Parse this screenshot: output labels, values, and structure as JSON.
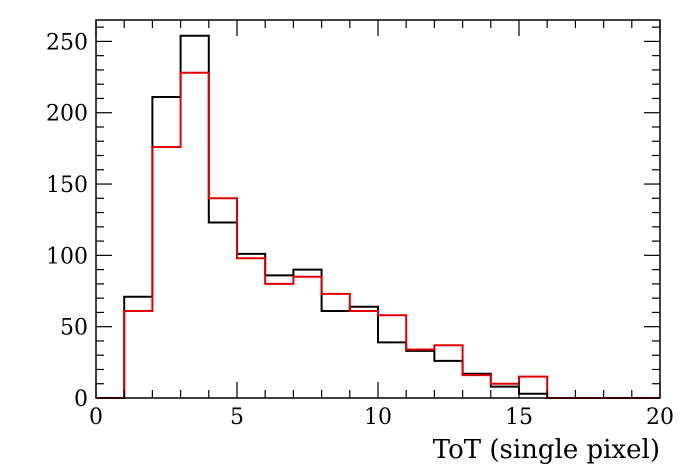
{
  "chart_data": {
    "type": "histogram",
    "xlabel": "ToT (single pixel)",
    "ylabel": "",
    "xlim": [
      0,
      20
    ],
    "ylim": [
      0,
      265
    ],
    "grid": false,
    "bin_edges": [
      0,
      1,
      2,
      3,
      4,
      5,
      6,
      7,
      8,
      9,
      10,
      11,
      12,
      13,
      14,
      15,
      16,
      17,
      18,
      19,
      20
    ],
    "x_ticks": [
      0,
      5,
      10,
      15,
      20
    ],
    "y_ticks": [
      0,
      50,
      100,
      150,
      200,
      250
    ],
    "series": [
      {
        "color": "#000000",
        "values": [
          0,
          71,
          211,
          254,
          123,
          101,
          86,
          90,
          61,
          64,
          39,
          33,
          26,
          17,
          8,
          3,
          0,
          0,
          0,
          0
        ]
      },
      {
        "color": "#e00000",
        "values": [
          0,
          61,
          176,
          228,
          140,
          98,
          80,
          85,
          73,
          61,
          58,
          34,
          37,
          16,
          10,
          15,
          0,
          0,
          0,
          0
        ]
      }
    ]
  }
}
